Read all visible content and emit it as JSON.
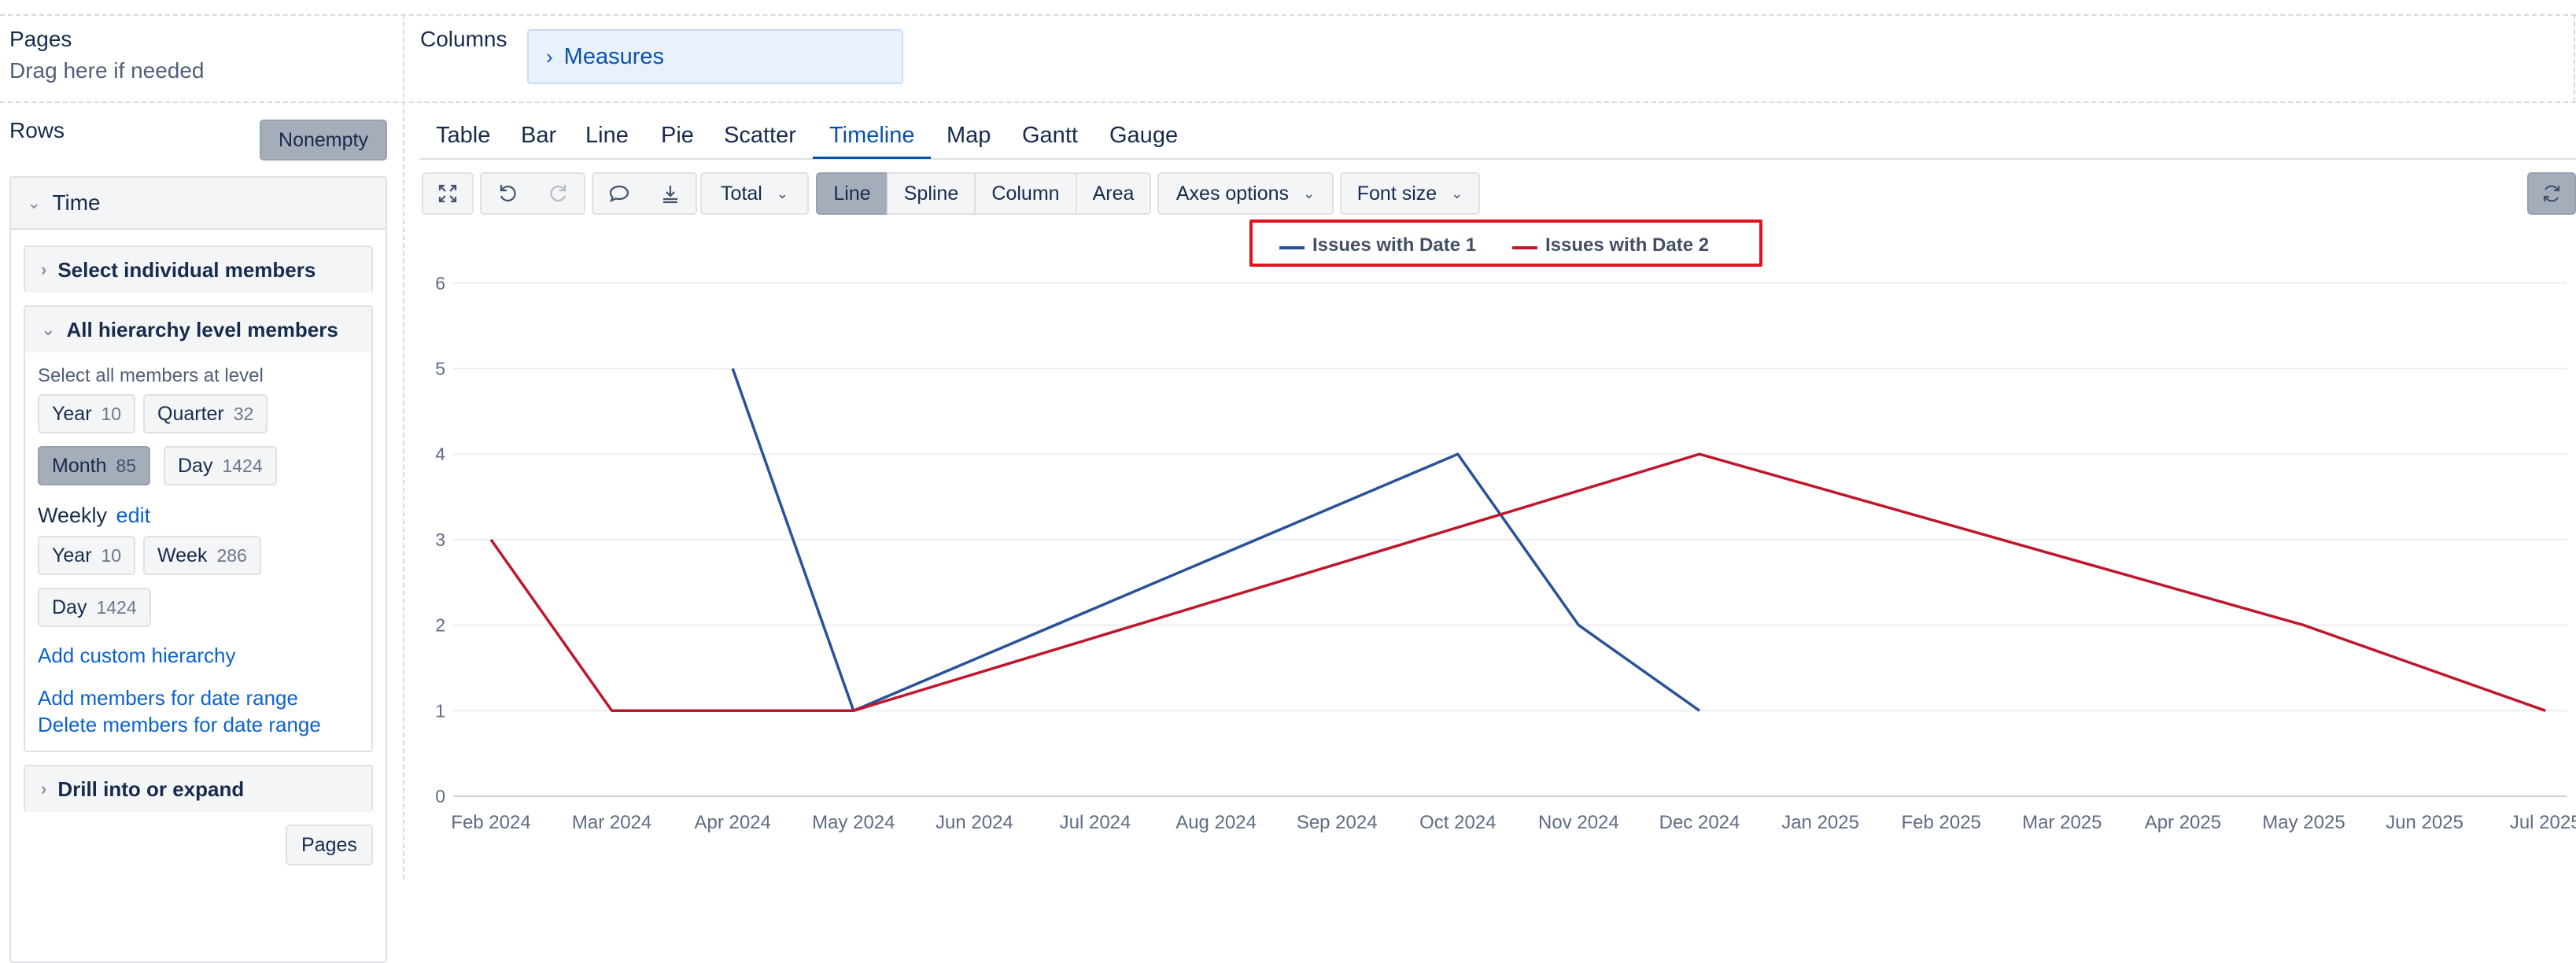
{
  "layout_pages": {
    "title": "Pages",
    "hint": "Drag here if needed"
  },
  "layout_columns": {
    "title": "Columns",
    "measures_label": "Measures"
  },
  "layout_rows": {
    "title": "Rows",
    "nonempty_label": "Nonempty"
  },
  "time_panel": {
    "title": "Time",
    "select_individual": "Select individual members",
    "all_hierarchy": "All hierarchy level members",
    "select_all_at_level": "Select all members at level",
    "default_levels": [
      {
        "name": "Year",
        "count": "10"
      },
      {
        "name": "Quarter",
        "count": "32"
      },
      {
        "name": "Month",
        "count": "85",
        "selected": true
      },
      {
        "name": "Day",
        "count": "1424"
      }
    ],
    "weekly_label": "Weekly",
    "weekly_edit": "edit",
    "weekly_levels": [
      {
        "name": "Year",
        "count": "10"
      },
      {
        "name": "Week",
        "count": "286"
      },
      {
        "name": "Day",
        "count": "1424"
      }
    ],
    "add_custom_hierarchy": "Add custom hierarchy",
    "add_members_range": "Add members for date range",
    "delete_members_range": "Delete members for date range",
    "drill_into": "Drill into or expand",
    "pages_button": "Pages"
  },
  "chart_tabs": [
    "Table",
    "Bar",
    "Line",
    "Pie",
    "Scatter",
    "Timeline",
    "Map",
    "Gantt",
    "Gauge"
  ],
  "active_tab": "Timeline",
  "toolbar": {
    "total_label": "Total",
    "line_label": "Line",
    "spline_label": "Spline",
    "column_label": "Column",
    "area_label": "Area",
    "axes_options_label": "Axes options",
    "font_size_label": "Font size",
    "icons": [
      "fullscreen-icon",
      "undo-icon",
      "redo-icon",
      "comment-icon",
      "export-icon",
      "refresh-icon"
    ]
  },
  "chart_data": {
    "type": "line",
    "x": [
      "Feb 2024",
      "Mar 2024",
      "Apr 2024",
      "May 2024",
      "Jun 2024",
      "Jul 2024",
      "Aug 2024",
      "Sep 2024",
      "Oct 2024",
      "Nov 2024",
      "Dec 2024",
      "Jan 2025",
      "Feb 2025",
      "Mar 2025",
      "Apr 2025",
      "May 2025",
      "Jun 2025",
      "Jul 2025"
    ],
    "y_ticks": [
      "0",
      "1",
      "2",
      "3",
      "4",
      "5",
      "6"
    ],
    "ylim": [
      0,
      6
    ],
    "grid": true,
    "legend_position": "top",
    "series": [
      {
        "name": "Issues with Date 1",
        "color": "#2a5298",
        "points": [
          {
            "x": "Apr 2024",
            "y": 5
          },
          {
            "x": "May 2024",
            "y": 1
          },
          {
            "x": "Oct 2024",
            "y": 4
          },
          {
            "x": "Nov 2024",
            "y": 2
          },
          {
            "x": "Dec 2024",
            "y": 1
          }
        ]
      },
      {
        "name": "Issues with Date 2",
        "color": "#c0172c",
        "points": [
          {
            "x": "Feb 2024",
            "y": 3
          },
          {
            "x": "Mar 2024",
            "y": 1
          },
          {
            "x": "May 2024",
            "y": 1
          },
          {
            "x": "Dec 2024",
            "y": 4
          },
          {
            "x": "May 2025",
            "y": 2
          },
          {
            "x": "Jul 2025",
            "y": 1
          }
        ]
      }
    ]
  }
}
